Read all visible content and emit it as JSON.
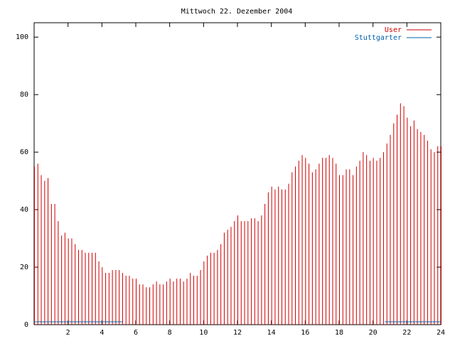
{
  "chart_data": {
    "type": "impulses",
    "title": "Mittwoch 22. Dezember 2004",
    "xlim": [
      0,
      24
    ],
    "xticks": [
      2,
      4,
      6,
      8,
      10,
      12,
      14,
      16,
      18,
      20,
      22,
      24
    ],
    "ylim": [
      0,
      105
    ],
    "yticks": [
      0,
      20,
      40,
      60,
      80,
      100
    ],
    "legend": "upper-right",
    "series": [
      {
        "name": "User",
        "color": "#cc0000",
        "style": "impulses",
        "x": [
          0,
          0.2,
          0.4,
          0.6,
          0.8,
          1,
          1.2,
          1.4,
          1.6,
          1.8,
          2,
          2.2,
          2.4,
          2.6,
          2.8,
          3,
          3.2,
          3.4,
          3.6,
          3.8,
          4,
          4.2,
          4.4,
          4.6,
          4.8,
          5,
          5.2,
          5.4,
          5.6,
          5.8,
          6,
          6.2,
          6.4,
          6.6,
          6.8,
          7,
          7.2,
          7.4,
          7.6,
          7.8,
          8,
          8.2,
          8.4,
          8.6,
          8.8,
          9,
          9.2,
          9.4,
          9.6,
          9.8,
          10,
          10.2,
          10.4,
          10.6,
          10.8,
          11,
          11.2,
          11.4,
          11.6,
          11.8,
          12,
          12.2,
          12.4,
          12.6,
          12.8,
          13,
          13.2,
          13.4,
          13.6,
          13.8,
          14,
          14.2,
          14.4,
          14.6,
          14.8,
          15,
          15.2,
          15.4,
          15.6,
          15.8,
          16,
          16.2,
          16.4,
          16.6,
          16.8,
          17,
          17.2,
          17.4,
          17.6,
          17.8,
          18,
          18.2,
          18.4,
          18.6,
          18.8,
          19,
          19.2,
          19.4,
          19.6,
          19.8,
          20,
          20.2,
          20.4,
          20.6,
          20.8,
          21,
          21.2,
          21.4,
          21.6,
          21.8,
          22,
          22.2,
          22.4,
          22.6,
          22.8,
          23,
          23.2,
          23.4,
          23.6,
          23.8,
          24
        ],
        "values": [
          55,
          56,
          52,
          50,
          51,
          42,
          42,
          36,
          31,
          32,
          30,
          30,
          28,
          26,
          26,
          25,
          25,
          25,
          25,
          22,
          20,
          18,
          18,
          19,
          19,
          19,
          18,
          17,
          17,
          16,
          16,
          14,
          14,
          13,
          13,
          14,
          15,
          14,
          14,
          15,
          16,
          15,
          16,
          16,
          15,
          16,
          18,
          17,
          17,
          19,
          22,
          24,
          25,
          25,
          26,
          28,
          32,
          33,
          34,
          36,
          38,
          36,
          36,
          36,
          37,
          37,
          36,
          38,
          42,
          46,
          48,
          47,
          48,
          47,
          47,
          49,
          53,
          55,
          57,
          59,
          58,
          56,
          53,
          54,
          56,
          58,
          58,
          59,
          58,
          56,
          52,
          52,
          54,
          54,
          52,
          55,
          57,
          60,
          59,
          57,
          58,
          57,
          58,
          60,
          63,
          66,
          70,
          73,
          77,
          76,
          72,
          69,
          71,
          68,
          67,
          66,
          64,
          61,
          60,
          62,
          62
        ]
      },
      {
        "name": "Stuttgarter",
        "color": "#0060ad",
        "style": "line",
        "x": [
          0,
          5.2,
          12,
          20.7,
          24
        ],
        "values": [
          1,
          1,
          null,
          1,
          1
        ]
      }
    ]
  }
}
